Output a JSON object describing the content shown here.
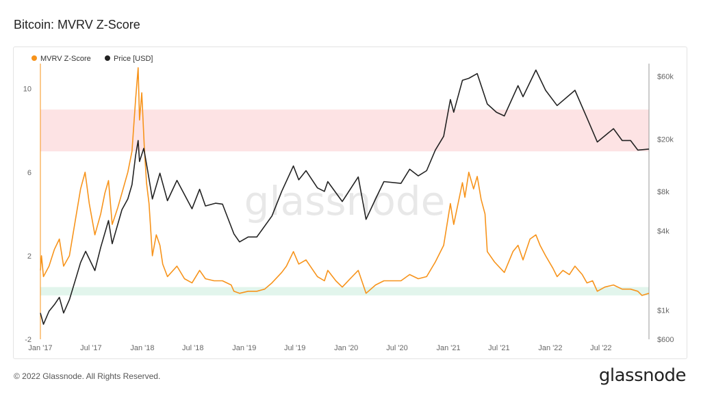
{
  "page": {
    "title": "Bitcoin: MVRV Z-Score"
  },
  "footer": {
    "copyright": "© 2022 Glassnode. All Rights Reserved.",
    "brand": "glassnode"
  },
  "watermark": "glassnode",
  "colors": {
    "mvrv": "#f7931a",
    "price": "#222222",
    "top_band": "#fde3e4",
    "bottom_band": "#e2f5ec",
    "grid": "#ececec",
    "axis_text": "#666666"
  },
  "chart_data": {
    "type": "line",
    "title": "Bitcoin: MVRV Z-Score",
    "legend_position": "top-left",
    "grid": false,
    "x_ticks": [
      "Jan '17",
      "Jul '17",
      "Jan '18",
      "Jul '18",
      "Jan '19",
      "Jul '19",
      "Jan '20",
      "Jul '20",
      "Jan '21",
      "Jul '21",
      "Jan '22",
      "Jul '22"
    ],
    "x_range": [
      "2017-01-01",
      "2022-12-20"
    ],
    "left_axis": {
      "ticks": [
        10,
        6,
        2,
        -2
      ],
      "range": [
        -2,
        11.2
      ]
    },
    "right_axis": {
      "ticks": [
        "$60k",
        "$20k",
        "$8k",
        "$4k",
        "$1k",
        "$600"
      ],
      "tick_values": [
        60000,
        20000,
        8000,
        4000,
        1000,
        600
      ],
      "scale": "log",
      "range": [
        600,
        75000
      ]
    },
    "bands": [
      {
        "name": "top",
        "from": 7,
        "to": 9
      },
      {
        "name": "bottom",
        "from": 0.1,
        "to": 0.5
      }
    ],
    "series": [
      {
        "name": "MVRV Z-Score",
        "axis": "left",
        "points": [
          [
            "2017-01-01",
            1.3
          ],
          [
            "2017-01-05",
            2.0
          ],
          [
            "2017-01-12",
            1.0
          ],
          [
            "2017-02-01",
            1.5
          ],
          [
            "2017-02-20",
            2.3
          ],
          [
            "2017-03-10",
            2.8
          ],
          [
            "2017-03-25",
            1.5
          ],
          [
            "2017-04-15",
            2.0
          ],
          [
            "2017-05-10",
            4.0
          ],
          [
            "2017-05-25",
            5.2
          ],
          [
            "2017-06-10",
            6.0
          ],
          [
            "2017-06-25",
            4.5
          ],
          [
            "2017-07-15",
            3.0
          ],
          [
            "2017-08-05",
            4.0
          ],
          [
            "2017-08-20",
            5.0
          ],
          [
            "2017-09-02",
            5.6
          ],
          [
            "2017-09-15",
            3.5
          ],
          [
            "2017-10-05",
            4.3
          ],
          [
            "2017-10-20",
            5.0
          ],
          [
            "2017-11-10",
            6.0
          ],
          [
            "2017-11-25",
            7.0
          ],
          [
            "2017-12-08",
            9.5
          ],
          [
            "2017-12-17",
            11.0
          ],
          [
            "2017-12-22",
            8.5
          ],
          [
            "2017-12-30",
            9.8
          ],
          [
            "2018-01-08",
            7.2
          ],
          [
            "2018-01-16",
            5.5
          ],
          [
            "2018-01-25",
            4.5
          ],
          [
            "2018-02-06",
            2.0
          ],
          [
            "2018-02-20",
            3.0
          ],
          [
            "2018-03-05",
            2.5
          ],
          [
            "2018-03-15",
            1.6
          ],
          [
            "2018-04-01",
            1.0
          ],
          [
            "2018-05-05",
            1.5
          ],
          [
            "2018-06-01",
            0.9
          ],
          [
            "2018-06-28",
            0.7
          ],
          [
            "2018-07-25",
            1.3
          ],
          [
            "2018-08-15",
            0.9
          ],
          [
            "2018-09-15",
            0.8
          ],
          [
            "2018-10-15",
            0.8
          ],
          [
            "2018-11-15",
            0.6
          ],
          [
            "2018-11-25",
            0.3
          ],
          [
            "2018-12-15",
            0.2
          ],
          [
            "2019-01-15",
            0.3
          ],
          [
            "2019-02-15",
            0.3
          ],
          [
            "2019-03-15",
            0.4
          ],
          [
            "2019-04-10",
            0.7
          ],
          [
            "2019-05-15",
            1.2
          ],
          [
            "2019-06-01",
            1.5
          ],
          [
            "2019-06-26",
            2.2
          ],
          [
            "2019-07-15",
            1.6
          ],
          [
            "2019-08-10",
            1.8
          ],
          [
            "2019-09-20",
            1.0
          ],
          [
            "2019-10-15",
            0.8
          ],
          [
            "2019-10-27",
            1.3
          ],
          [
            "2019-11-25",
            0.8
          ],
          [
            "2019-12-18",
            0.5
          ],
          [
            "2020-01-15",
            0.9
          ],
          [
            "2020-02-13",
            1.3
          ],
          [
            "2020-03-12",
            0.2
          ],
          [
            "2020-04-15",
            0.6
          ],
          [
            "2020-05-15",
            0.8
          ],
          [
            "2020-06-15",
            0.8
          ],
          [
            "2020-07-15",
            0.8
          ],
          [
            "2020-08-15",
            1.1
          ],
          [
            "2020-09-15",
            0.9
          ],
          [
            "2020-10-15",
            1.0
          ],
          [
            "2020-11-15",
            1.7
          ],
          [
            "2020-12-15",
            2.5
          ],
          [
            "2021-01-08",
            4.5
          ],
          [
            "2021-01-20",
            3.5
          ],
          [
            "2021-02-20",
            5.5
          ],
          [
            "2021-03-01",
            4.8
          ],
          [
            "2021-03-15",
            6.0
          ],
          [
            "2021-04-01",
            5.2
          ],
          [
            "2021-04-14",
            5.8
          ],
          [
            "2021-04-28",
            4.7
          ],
          [
            "2021-05-12",
            4.0
          ],
          [
            "2021-05-20",
            2.2
          ],
          [
            "2021-06-15",
            1.7
          ],
          [
            "2021-07-20",
            1.2
          ],
          [
            "2021-08-20",
            2.2
          ],
          [
            "2021-09-07",
            2.5
          ],
          [
            "2021-09-25",
            1.8
          ],
          [
            "2021-10-20",
            2.8
          ],
          [
            "2021-11-10",
            3.0
          ],
          [
            "2021-11-25",
            2.5
          ],
          [
            "2021-12-15",
            2.0
          ],
          [
            "2022-01-10",
            1.4
          ],
          [
            "2022-01-25",
            1.0
          ],
          [
            "2022-02-15",
            1.3
          ],
          [
            "2022-03-10",
            1.1
          ],
          [
            "2022-03-30",
            1.5
          ],
          [
            "2022-04-25",
            1.1
          ],
          [
            "2022-05-12",
            0.7
          ],
          [
            "2022-06-01",
            0.8
          ],
          [
            "2022-06-18",
            0.3
          ],
          [
            "2022-07-15",
            0.5
          ],
          [
            "2022-08-15",
            0.6
          ],
          [
            "2022-09-15",
            0.4
          ],
          [
            "2022-10-15",
            0.4
          ],
          [
            "2022-11-10",
            0.3
          ],
          [
            "2022-11-25",
            0.1
          ],
          [
            "2022-12-20",
            0.2
          ]
        ]
      },
      {
        "name": "Price [USD]",
        "axis": "right",
        "points": [
          [
            "2017-01-01",
            950
          ],
          [
            "2017-01-12",
            780
          ],
          [
            "2017-02-01",
            980
          ],
          [
            "2017-02-20",
            1100
          ],
          [
            "2017-03-10",
            1250
          ],
          [
            "2017-03-25",
            950
          ],
          [
            "2017-04-15",
            1200
          ],
          [
            "2017-05-10",
            1800
          ],
          [
            "2017-05-25",
            2300
          ],
          [
            "2017-06-12",
            2800
          ],
          [
            "2017-07-15",
            2000
          ],
          [
            "2017-08-05",
            3000
          ],
          [
            "2017-09-02",
            4800
          ],
          [
            "2017-09-15",
            3200
          ],
          [
            "2017-10-20",
            5800
          ],
          [
            "2017-11-10",
            7000
          ],
          [
            "2017-11-25",
            9000
          ],
          [
            "2017-12-08",
            15000
          ],
          [
            "2017-12-17",
            19500
          ],
          [
            "2017-12-22",
            13500
          ],
          [
            "2018-01-06",
            17000
          ],
          [
            "2018-01-20",
            11500
          ],
          [
            "2018-02-06",
            7000
          ],
          [
            "2018-03-05",
            11000
          ],
          [
            "2018-04-01",
            6800
          ],
          [
            "2018-05-05",
            9700
          ],
          [
            "2018-06-28",
            5900
          ],
          [
            "2018-07-25",
            8300
          ],
          [
            "2018-08-15",
            6200
          ],
          [
            "2018-09-20",
            6500
          ],
          [
            "2018-10-15",
            6400
          ],
          [
            "2018-11-25",
            3800
          ],
          [
            "2018-12-15",
            3300
          ],
          [
            "2019-01-15",
            3600
          ],
          [
            "2019-02-15",
            3600
          ],
          [
            "2019-04-10",
            5200
          ],
          [
            "2019-05-15",
            8000
          ],
          [
            "2019-06-26",
            12500
          ],
          [
            "2019-07-15",
            9800
          ],
          [
            "2019-08-10",
            11500
          ],
          [
            "2019-09-20",
            8500
          ],
          [
            "2019-10-15",
            8000
          ],
          [
            "2019-10-27",
            9500
          ],
          [
            "2019-12-18",
            6700
          ],
          [
            "2020-02-13",
            10300
          ],
          [
            "2020-03-12",
            4900
          ],
          [
            "2020-04-15",
            7000
          ],
          [
            "2020-05-15",
            9500
          ],
          [
            "2020-07-15",
            9200
          ],
          [
            "2020-08-15",
            11800
          ],
          [
            "2020-09-15",
            10500
          ],
          [
            "2020-10-15",
            11500
          ],
          [
            "2020-11-15",
            16500
          ],
          [
            "2020-12-15",
            21000
          ],
          [
            "2021-01-08",
            40000
          ],
          [
            "2021-01-20",
            32000
          ],
          [
            "2021-02-20",
            56000
          ],
          [
            "2021-03-15",
            58000
          ],
          [
            "2021-04-14",
            63000
          ],
          [
            "2021-05-20",
            37000
          ],
          [
            "2021-06-22",
            32000
          ],
          [
            "2021-07-20",
            30000
          ],
          [
            "2021-09-07",
            51000
          ],
          [
            "2021-09-25",
            42000
          ],
          [
            "2021-11-10",
            67000
          ],
          [
            "2021-12-15",
            47000
          ],
          [
            "2022-01-25",
            36000
          ],
          [
            "2022-03-30",
            47000
          ],
          [
            "2022-05-12",
            29000
          ],
          [
            "2022-06-18",
            19000
          ],
          [
            "2022-08-15",
            24000
          ],
          [
            "2022-09-15",
            19500
          ],
          [
            "2022-10-15",
            19500
          ],
          [
            "2022-11-10",
            16500
          ],
          [
            "2022-12-20",
            16800
          ]
        ]
      }
    ]
  }
}
